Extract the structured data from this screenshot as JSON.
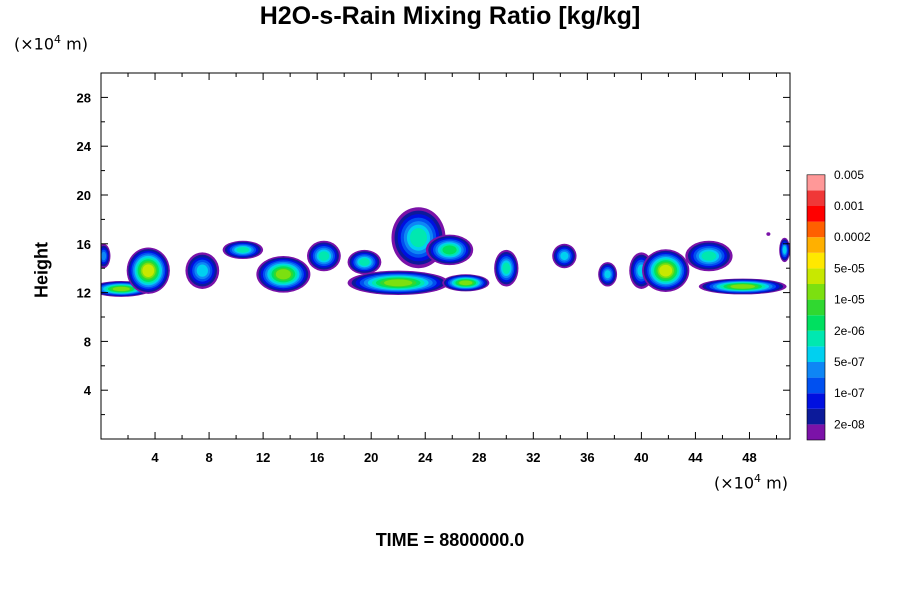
{
  "title": "H2O-s-Rain Mixing Ratio [kg/kg]",
  "y_unit": {
    "prefix": "(×10",
    "exp": "4",
    "suffix": " m)"
  },
  "x_unit": {
    "prefix": "(×10",
    "exp": "4",
    "suffix": " m)"
  },
  "time_label": "TIME = 8800000.0",
  "chart_data": {
    "type": "heatmap",
    "title": "H2O-s-Rain Mixing Ratio [kg/kg]",
    "xlabel": "",
    "ylabel": "Height",
    "xlim": [
      0,
      51
    ],
    "ylim": [
      0,
      30
    ],
    "x_ticks": [
      4,
      8,
      12,
      16,
      20,
      24,
      28,
      32,
      36,
      40,
      44,
      48
    ],
    "y_ticks": [
      4,
      8,
      12,
      16,
      20,
      24,
      28
    ],
    "colorbar": {
      "colors": [
        "#7b12a8",
        "#0c1a9a",
        "#0010e0",
        "#0050f0",
        "#0e86f5",
        "#00d0f0",
        "#00e8b0",
        "#00e060",
        "#30d830",
        "#7ce010",
        "#c8e800",
        "#ffe800",
        "#ffb000",
        "#ff6000",
        "#ff0000",
        "#f03838",
        "#ff9898"
      ],
      "labels": [
        "2e-08",
        "1e-07",
        "5e-07",
        "2e-06",
        "1e-05",
        "5e-05",
        "0.0002",
        "0.001",
        "0.005"
      ]
    },
    "blobs": [
      {
        "x": 0.2,
        "y": 15.0,
        "w": 1.0,
        "h": 2.0,
        "level": 4
      },
      {
        "x": 1.5,
        "y": 12.3,
        "w": 4.5,
        "h": 1.3,
        "level": 9
      },
      {
        "x": 3.5,
        "y": 13.8,
        "w": 3.2,
        "h": 3.8,
        "level": 10
      },
      {
        "x": 7.5,
        "y": 13.8,
        "w": 2.5,
        "h": 3.0,
        "level": 5
      },
      {
        "x": 10.5,
        "y": 15.5,
        "w": 3.0,
        "h": 1.5,
        "level": 6
      },
      {
        "x": 13.5,
        "y": 13.5,
        "w": 4.0,
        "h": 3.0,
        "level": 9
      },
      {
        "x": 16.5,
        "y": 15.0,
        "w": 2.5,
        "h": 2.5,
        "level": 6
      },
      {
        "x": 19.5,
        "y": 14.5,
        "w": 2.5,
        "h": 2.0,
        "level": 6
      },
      {
        "x": 22.0,
        "y": 12.8,
        "w": 7.5,
        "h": 2.0,
        "level": 9
      },
      {
        "x": 23.5,
        "y": 16.5,
        "w": 4.0,
        "h": 5.0,
        "level": 6
      },
      {
        "x": 25.8,
        "y": 15.5,
        "w": 3.5,
        "h": 2.5,
        "level": 7
      },
      {
        "x": 27.0,
        "y": 12.8,
        "w": 3.5,
        "h": 1.4,
        "level": 9
      },
      {
        "x": 30.0,
        "y": 14.0,
        "w": 1.8,
        "h": 3.0,
        "level": 6
      },
      {
        "x": 34.3,
        "y": 15.0,
        "w": 1.8,
        "h": 2.0,
        "level": 5
      },
      {
        "x": 37.5,
        "y": 13.5,
        "w": 1.4,
        "h": 2.0,
        "level": 5
      },
      {
        "x": 40.0,
        "y": 13.8,
        "w": 1.8,
        "h": 3.0,
        "level": 5
      },
      {
        "x": 41.8,
        "y": 13.8,
        "w": 3.5,
        "h": 3.5,
        "level": 10
      },
      {
        "x": 45.0,
        "y": 15.0,
        "w": 3.5,
        "h": 2.5,
        "level": 6
      },
      {
        "x": 47.5,
        "y": 12.5,
        "w": 6.5,
        "h": 1.3,
        "level": 9
      },
      {
        "x": 50.6,
        "y": 15.5,
        "w": 0.8,
        "h": 2.0,
        "level": 5
      },
      {
        "x": 49.4,
        "y": 16.8,
        "w": 0.3,
        "h": 0.3,
        "level": 0
      }
    ]
  }
}
